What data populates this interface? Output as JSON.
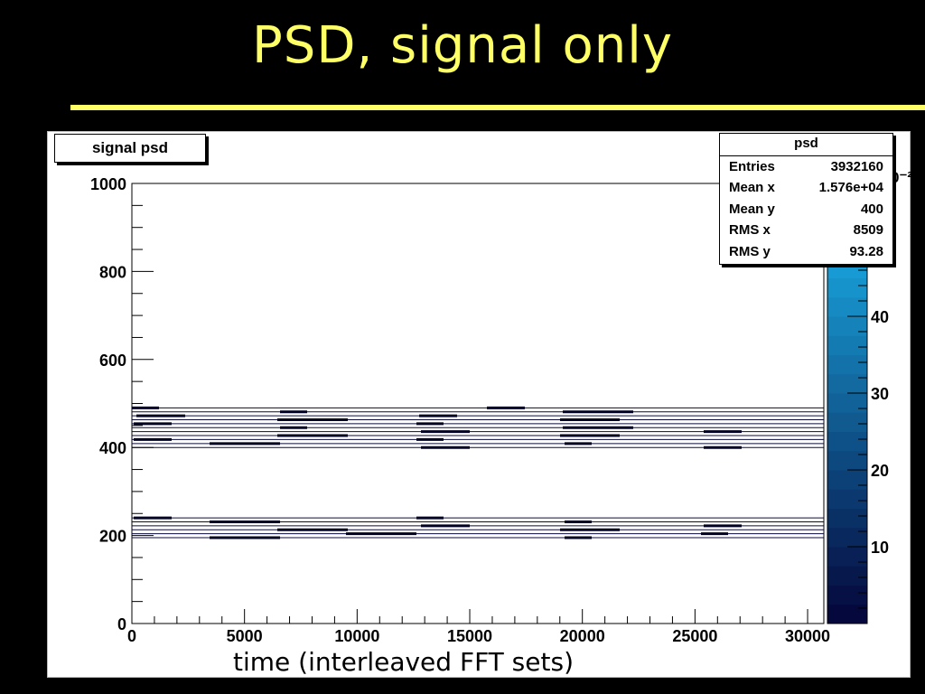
{
  "slide": {
    "title": "PSD, signal only"
  },
  "chart_data": {
    "type": "heatmap",
    "title": "signal psd",
    "xlabel": "time (interleaved FFT sets)",
    "ylabel": "",
    "xlim": [
      0,
      30720
    ],
    "ylim": [
      0,
      1000
    ],
    "x_ticks": [
      "0",
      "5000",
      "10000",
      "15000",
      "20000",
      "25000",
      "30000"
    ],
    "y_ticks": [
      "0",
      "200",
      "400",
      "600",
      "800",
      "1000"
    ],
    "z_ticks": [
      "10",
      "20",
      "30",
      "40"
    ],
    "z_axis_clipped_label": "0⁻²",
    "zlim": [
      0,
      50
    ],
    "grid": false,
    "colormap": "blue palette (dark navy = low, light blue = high)",
    "bands": [
      {
        "y_min": 195,
        "y_max": 240,
        "level": 2
      },
      {
        "y_min": 400,
        "y_max": 490,
        "level": 2
      }
    ],
    "stats_box": {
      "title": "psd",
      "rows": [
        {
          "label": "Entries",
          "value": "3932160"
        },
        {
          "label": "Mean x",
          "value": "1.576e+04"
        },
        {
          "label": "Mean y",
          "value": "400"
        },
        {
          "label": "RMS x",
          "value": "8509"
        },
        {
          "label": "RMS y",
          "value": "93.28"
        }
      ]
    }
  }
}
